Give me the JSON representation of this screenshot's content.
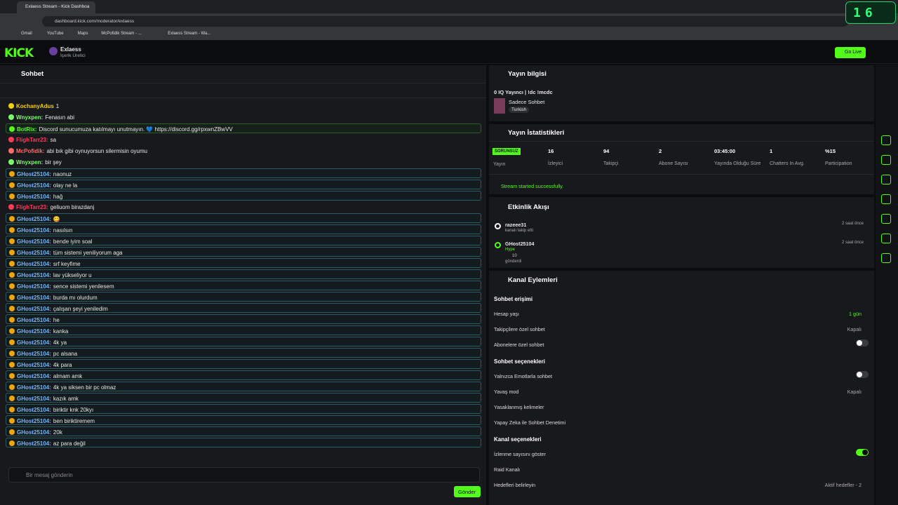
{
  "browser": {
    "tab": "Exlaess Stream - Kick Dashboa",
    "url": "dashboard.kick.com/moderator/exlaess",
    "bookmarks": [
      "Gmail",
      "YouTube",
      "Maps",
      "McPofidik Stream - ...",
      "Exlaess Stream - Wa..."
    ],
    "badge": "16"
  },
  "header": {
    "logo": "KICK",
    "channel": "Exlaess",
    "role": "İçerik Üretici",
    "go_live": "Go Live"
  },
  "chat": {
    "title": "Sohbet",
    "messages": [
      {
        "user": "KochanyAdus",
        "text": "1",
        "color": "#f5d000",
        "style": "plain"
      },
      {
        "user": "Wnyxpen:",
        "text": "Fenasın abi",
        "color": "#7cff6b",
        "style": "plain"
      },
      {
        "user": "BotRix:",
        "text": "Discord sunucumuza katılmayı unutmayın. 💙 https://discord.gg/rpxwnZBwVV",
        "color": "#53fc18",
        "style": "bot"
      },
      {
        "user": "FlighTarr23:",
        "text": "sa",
        "color": "#ff3b5c",
        "style": "plain"
      },
      {
        "user": "McPofidik:",
        "text": "abi bık gibi oynuyorsun silermisin oyumu",
        "color": "#ff6b6b",
        "style": "plain"
      },
      {
        "user": "Wnyxpen:",
        "text": "bir şey",
        "color": "#7cff6b",
        "style": "plain"
      },
      {
        "user": "GHost25104:",
        "text": "naonuz",
        "color": "#6fb7ff",
        "style": "hl"
      },
      {
        "user": "GHost25104:",
        "text": "olay ne la",
        "color": "#6fb7ff",
        "style": "hl"
      },
      {
        "user": "GHost25104:",
        "text": "hağ",
        "color": "#6fb7ff",
        "style": "hl"
      },
      {
        "user": "FlighTarr23:",
        "text": "geliuom birazdanj",
        "color": "#ff3b5c",
        "style": "plain"
      },
      {
        "user": "GHost25104:",
        "text": "😋",
        "color": "#6fb7ff",
        "style": "hl"
      },
      {
        "user": "GHost25104:",
        "text": "nasılsın",
        "color": "#6fb7ff",
        "style": "hl"
      },
      {
        "user": "GHost25104:",
        "text": "bende iyim soal",
        "color": "#6fb7ff",
        "style": "hl"
      },
      {
        "user": "GHost25104:",
        "text": "tüm sistemi yeniliyorum aga",
        "color": "#6fb7ff",
        "style": "hl"
      },
      {
        "user": "GHost25104:",
        "text": "srf keyfime",
        "color": "#6fb7ff",
        "style": "hl"
      },
      {
        "user": "GHost25104:",
        "text": "lav yükseliyor u",
        "color": "#6fb7ff",
        "style": "hl"
      },
      {
        "user": "GHost25104:",
        "text": "sence sistemi yenilesem",
        "color": "#6fb7ff",
        "style": "hl"
      },
      {
        "user": "GHost25104:",
        "text": "burda mı olurdum",
        "color": "#6fb7ff",
        "style": "hl"
      },
      {
        "user": "GHost25104:",
        "text": "çalışan şeyi yeniledim",
        "color": "#6fb7ff",
        "style": "hl"
      },
      {
        "user": "GHost25104:",
        "text": "he",
        "color": "#6fb7ff",
        "style": "hl"
      },
      {
        "user": "GHost25104:",
        "text": "kanka",
        "color": "#6fb7ff",
        "style": "hl"
      },
      {
        "user": "GHost25104:",
        "text": "4k ya",
        "color": "#6fb7ff",
        "style": "hl"
      },
      {
        "user": "GHost25104:",
        "text": "pc alsana",
        "color": "#6fb7ff",
        "style": "hl"
      },
      {
        "user": "GHost25104:",
        "text": "4k para",
        "color": "#6fb7ff",
        "style": "hl"
      },
      {
        "user": "GHost25104:",
        "text": "almam amk",
        "color": "#6fb7ff",
        "style": "hl"
      },
      {
        "user": "GHost25104:",
        "text": "4k ya siksen bir pc olmaz",
        "color": "#6fb7ff",
        "style": "hl"
      },
      {
        "user": "GHost25104:",
        "text": "kazık amk",
        "color": "#6fb7ff",
        "style": "hl"
      },
      {
        "user": "GHost25104:",
        "text": "biriktir knk 20kyı",
        "color": "#6fb7ff",
        "style": "hl"
      },
      {
        "user": "GHost25104:",
        "text": "ben biriktiremem",
        "color": "#6fb7ff",
        "style": "hl"
      },
      {
        "user": "GHost25104:",
        "text": "20k",
        "color": "#6fb7ff",
        "style": "hl"
      },
      {
        "user": "GHost25104:",
        "text": "az para değil",
        "color": "#6fb7ff",
        "style": "hl"
      }
    ],
    "placeholder": "Bir mesaj gönderin",
    "send": "Gönder"
  },
  "stream_info": {
    "title": "Yayın bilgisi",
    "stream_title": "0 IQ Yayıncı | !dc !mcdc",
    "category": "Sadece Sohbet",
    "language": "Turkish"
  },
  "stats": {
    "title": "Yayın İstatistikleri",
    "status": "SORUNSUZ",
    "status_label": "Yayın",
    "items": [
      {
        "value": 16,
        "label": "İzleyici"
      },
      {
        "value": 94,
        "label": "Takipçi"
      },
      {
        "value": 2,
        "label": "Abone Sayısı"
      },
      {
        "value": "03:45:00",
        "label": "Yayında Olduğu Süre"
      },
      {
        "value": 1,
        "label": "Chatters In Avg."
      },
      {
        "value": "%15",
        "label": "Participation"
      }
    ],
    "message": "Stream started successfully."
  },
  "activity": {
    "title": "Etkinlik Akışı",
    "items": [
      {
        "user": "razeee31",
        "detail": "kanalı takip etti",
        "time": "2 saat önce"
      },
      {
        "user": "GHost25104",
        "detail": "Hype",
        "amount": "10",
        "note": "gönderdi",
        "time": "2 saat önce"
      }
    ]
  },
  "actions": {
    "title": "Kanal Eylemleri",
    "sections": [
      {
        "title": "Sohbet erişimi",
        "rows": [
          {
            "label": "Hesap yaşı",
            "value": "1 gün"
          },
          {
            "label": "Takipçilere özel sohbet",
            "value": "Kapalı"
          },
          {
            "label": "Abonelere özel sohbet",
            "toggle": false
          }
        ]
      },
      {
        "title": "Sohbet seçenekleri",
        "rows": [
          {
            "label": "Yalnızca Emotlarla sohbet",
            "toggle": false
          },
          {
            "label": "Yavaş mod",
            "value": "Kapalı"
          },
          {
            "label": "Yasaklanmış kelimeler"
          },
          {
            "label": "Yapay Zeka ile Sohbet Denetimi"
          }
        ]
      },
      {
        "title": "Kanal seçenekleri",
        "rows": [
          {
            "label": "İzlenme sayısını göster",
            "toggle": true
          },
          {
            "label": "Raid Kanalı"
          },
          {
            "label": "Hedefleri belirleyin",
            "value": "Aktif hedefler - 2"
          }
        ]
      }
    ]
  }
}
